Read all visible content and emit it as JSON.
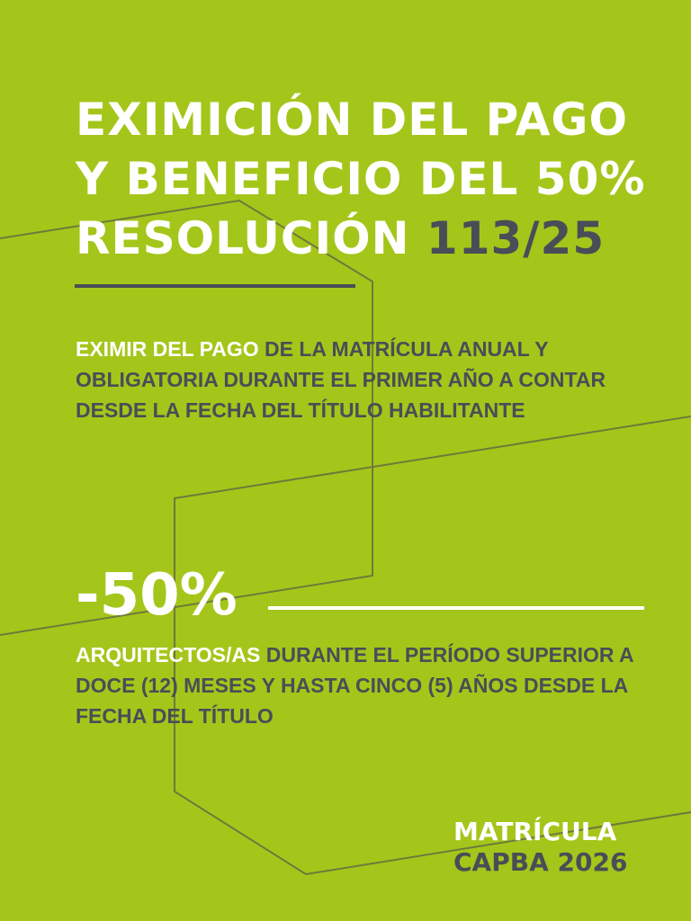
{
  "colors": {
    "background": "#a4c61a",
    "dark": "#4a4d57",
    "white": "#ffffff",
    "lines": "#6e7a3a"
  },
  "title": {
    "line1": "EXIMICIÓN DEL PAGO",
    "line2": "Y BENEFICIO DEL 50%",
    "line3_white": "RESOLUCIÓN",
    "line3_dark": "113/25"
  },
  "section1": {
    "highlight": "EXIMIR DEL PAGO",
    "text": "DE LA MATRÍCULA ANUAL Y OBLIGATORIA DURANTE EL PRIMER AÑO A CONTAR DESDE LA FECHA DEL TÍTULO HABILITANTE"
  },
  "section2": {
    "big": "-50%",
    "highlight": "ARQUITECTOS/AS",
    "text": "DURANTE EL PERÍODO SUPERIOR A DOCE (12) MESES Y HASTA CINCO (5) AÑOS DESDE LA FECHA DEL TÍTULO"
  },
  "footer": {
    "line1": "MATRÍCULA",
    "line2": "CAPBA 2026"
  }
}
